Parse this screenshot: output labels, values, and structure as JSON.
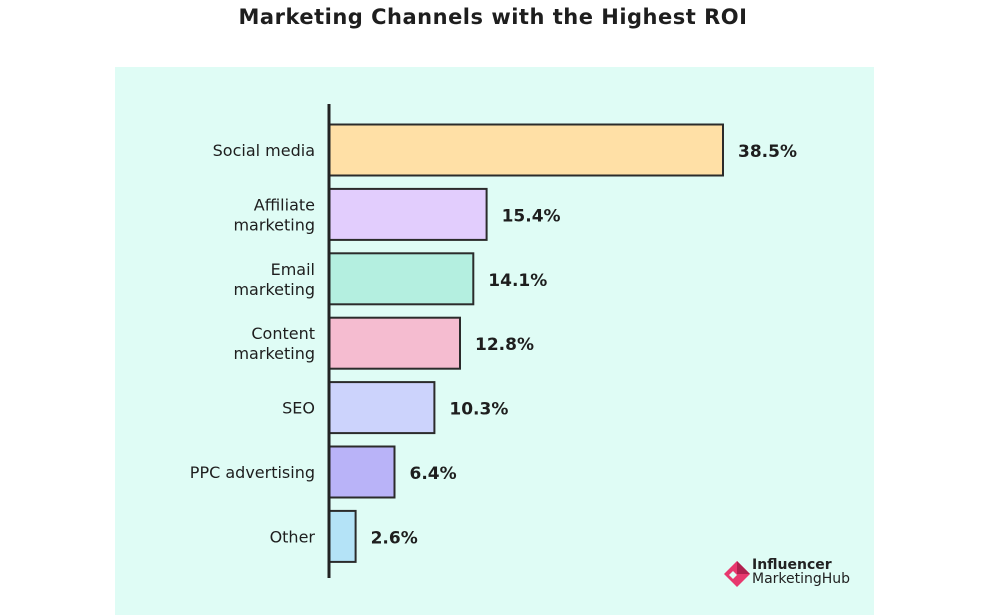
{
  "chart_data": {
    "type": "bar",
    "orientation": "horizontal",
    "title": "Marketing Channels with the Highest ROI",
    "categories": [
      [
        "Social media"
      ],
      [
        "Affiliate",
        "marketing"
      ],
      [
        "Email",
        "marketing"
      ],
      [
        "Content",
        "marketing"
      ],
      [
        "SEO"
      ],
      [
        "PPC advertising"
      ],
      [
        "Other"
      ]
    ],
    "values": [
      38.5,
      15.4,
      14.1,
      12.8,
      10.3,
      6.4,
      2.6
    ],
    "value_labels": [
      "38.5%",
      "15.4%",
      "14.1%",
      "12.8%",
      "10.3%",
      "6.4%",
      "2.6%"
    ],
    "value_unit": "%",
    "xlim": [
      0,
      38.5
    ],
    "xlabel": "",
    "ylabel": "",
    "grid": false,
    "legend": "none"
  },
  "colors": {
    "background": "#dffcf5",
    "axis": "#222222",
    "bar_outline": "#2b2b2b",
    "text": "#1e1e1e",
    "bars": [
      "#ffe0a6",
      "#e2cdfd",
      "#b4efe0",
      "#f5bcd0",
      "#ccd3fc",
      "#b9b3f8",
      "#b4e3f7"
    ],
    "logo_pink": "#e8386e",
    "logo_dark": "#b0214f"
  },
  "logo": {
    "line1": "Influencer",
    "line2": "MarketingHub"
  }
}
